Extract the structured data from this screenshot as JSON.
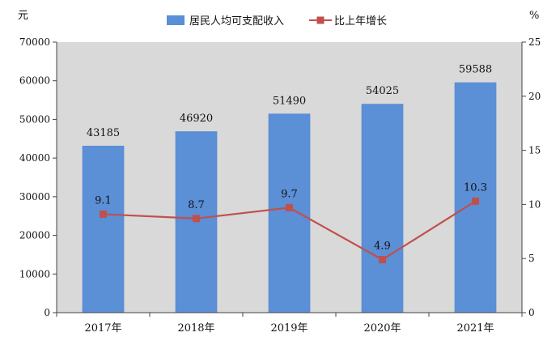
{
  "chart_data": {
    "type": "bar+line",
    "categories": [
      "2017年",
      "2018年",
      "2019年",
      "2020年",
      "2021年"
    ],
    "series": [
      {
        "name": "居民人均可支配收入",
        "type": "bar",
        "axis": "left",
        "values": [
          43185,
          46920,
          51490,
          54025,
          59588
        ],
        "color": "#5b8fd6"
      },
      {
        "name": "比上年增长",
        "type": "line",
        "axis": "right",
        "values": [
          9.1,
          8.7,
          9.7,
          4.9,
          10.3
        ],
        "color": "#c0504d"
      }
    ],
    "left_axis": {
      "unit": "元",
      "min": 0,
      "max": 70000,
      "ticks": [
        0,
        10000,
        20000,
        30000,
        40000,
        50000,
        60000,
        70000
      ]
    },
    "right_axis": {
      "unit": "%",
      "min": 0,
      "max": 25,
      "ticks": [
        0,
        5,
        10,
        15,
        20,
        25
      ]
    },
    "legend_position": "top",
    "plot_background": "#d9d9d9",
    "grid": false
  }
}
